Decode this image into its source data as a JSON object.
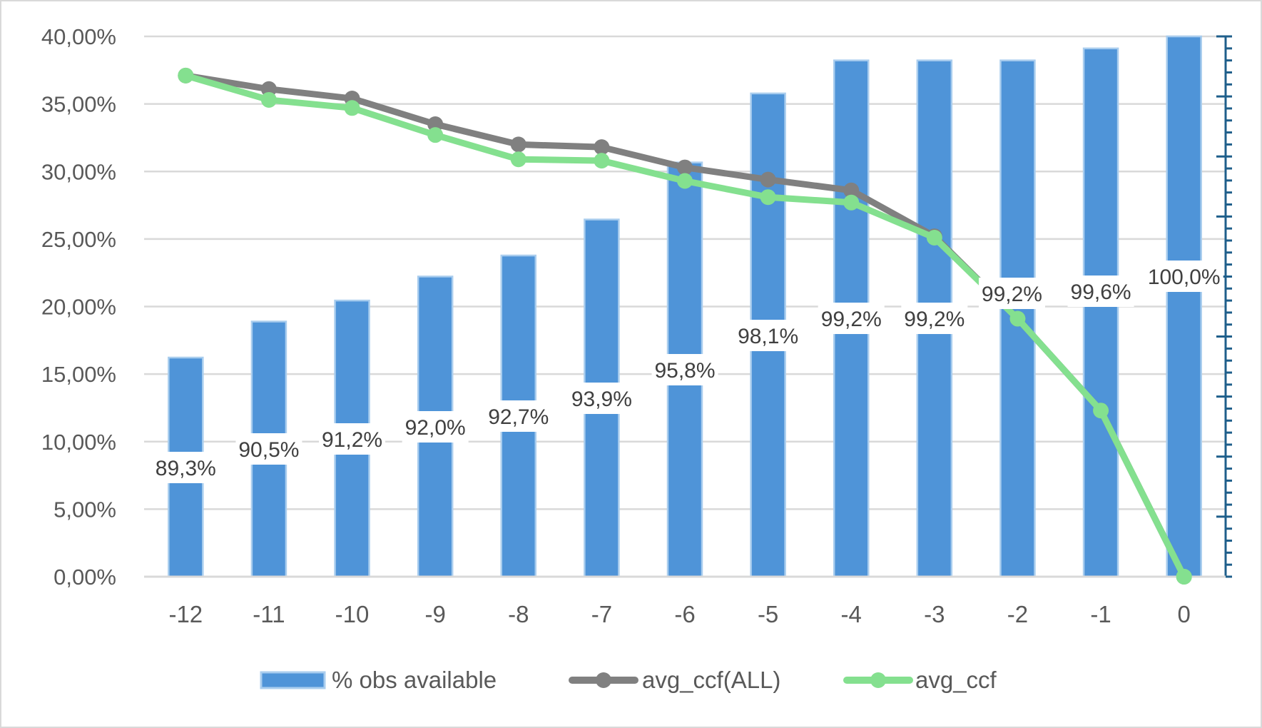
{
  "chart_data": {
    "type": "bar+line",
    "title": "",
    "xlabel": "",
    "ylabel": "",
    "categories": [
      "-12",
      "-11",
      "-10",
      "-9",
      "-8",
      "-7",
      "-6",
      "-5",
      "-4",
      "-3",
      "-2",
      "-1",
      "0"
    ],
    "primary_axis": {
      "ylim": [
        0,
        40
      ],
      "tick_step": 5,
      "tick_labels": [
        "0,00%",
        "5,00%",
        "10,00%",
        "15,00%",
        "20,00%",
        "25,00%",
        "30,00%",
        "35,00%",
        "40,00%"
      ],
      "gridlines": true
    },
    "secondary_axis": {
      "ylim": [
        82,
        100
      ],
      "major_step": 2,
      "minor_step": 0.4,
      "tick_labels_shown": false,
      "color": "#1f5f8b"
    },
    "series": [
      {
        "name": "% obs available",
        "type": "bar",
        "axis": "secondary",
        "color": "#4f94d8",
        "border_color": "#a9cdee",
        "values": [
          89.3,
          90.5,
          91.2,
          92.0,
          92.7,
          93.9,
          95.8,
          98.1,
          99.2,
          99.2,
          99.2,
          99.6,
          100.0
        ],
        "data_labels": [
          "89,3%",
          "90,5%",
          "91,2%",
          "92,0%",
          "92,7%",
          "93,9%",
          "95,8%",
          "98,1%",
          "99,2%",
          "99,2%",
          "99,2%",
          "99,6%",
          "100,0%"
        ]
      },
      {
        "name": "avg_ccf(ALL)",
        "type": "line",
        "axis": "primary",
        "color": "#808080",
        "values": [
          37.1,
          36.1,
          35.4,
          33.5,
          32.0,
          31.8,
          30.3,
          29.4,
          28.6,
          25.2,
          19.1,
          12.3,
          0.0
        ]
      },
      {
        "name": "avg_ccf",
        "type": "line",
        "axis": "primary",
        "color": "#84e08f",
        "values": [
          37.1,
          35.3,
          34.7,
          32.7,
          30.9,
          30.8,
          29.3,
          28.1,
          27.7,
          25.1,
          19.1,
          12.3,
          0.0
        ]
      }
    ],
    "legend": {
      "position": "bottom",
      "entries": [
        "% obs available",
        "avg_ccf(ALL)",
        "avg_ccf"
      ]
    }
  }
}
